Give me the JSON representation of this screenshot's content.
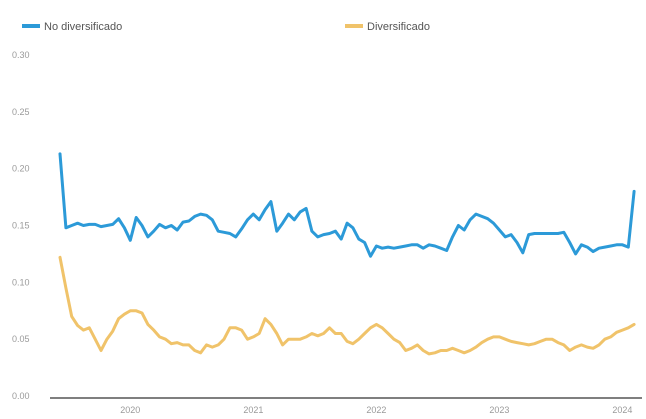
{
  "chart_data": {
    "type": "line",
    "title": "",
    "xlabel": "",
    "ylabel": "",
    "ylim": [
      0.0,
      0.3
    ],
    "yticks": [
      {
        "value": 0.0,
        "label": "0.00"
      },
      {
        "value": 0.05,
        "label": "0.05"
      },
      {
        "value": 0.1,
        "label": "0.10"
      },
      {
        "value": 0.15,
        "label": "0.15"
      },
      {
        "value": 0.2,
        "label": "0.20"
      },
      {
        "value": 0.25,
        "label": "0.25"
      },
      {
        "value": 0.3,
        "label": "0.30"
      }
    ],
    "xlim": [
      0,
      99
    ],
    "xticks": [
      {
        "value": 12,
        "label": "2020"
      },
      {
        "value": 33,
        "label": "2021"
      },
      {
        "value": 54,
        "label": "2022"
      },
      {
        "value": 75,
        "label": "2023"
      },
      {
        "value": 96,
        "label": "2024"
      }
    ],
    "legend_position": "top",
    "grid": false,
    "series": [
      {
        "name": "No diversificado",
        "color": "#2c9ad8",
        "values": [
          0.213,
          0.148,
          0.15,
          0.152,
          0.15,
          0.151,
          0.151,
          0.149,
          0.15,
          0.151,
          0.156,
          0.148,
          0.137,
          0.157,
          0.15,
          0.14,
          0.145,
          0.151,
          0.148,
          0.15,
          0.146,
          0.153,
          0.154,
          0.158,
          0.16,
          0.159,
          0.155,
          0.145,
          0.144,
          0.143,
          0.14,
          0.147,
          0.155,
          0.16,
          0.155,
          0.164,
          0.171,
          0.145,
          0.152,
          0.16,
          0.155,
          0.162,
          0.165,
          0.145,
          0.14,
          0.142,
          0.143,
          0.145,
          0.138,
          0.152,
          0.148,
          0.138,
          0.135,
          0.123,
          0.132,
          0.13,
          0.131,
          0.13,
          0.131,
          0.132,
          0.133,
          0.133,
          0.13,
          0.133,
          0.132,
          0.13,
          0.128,
          0.14,
          0.15,
          0.146,
          0.155,
          0.16,
          0.158,
          0.156,
          0.152,
          0.146,
          0.14,
          0.142,
          0.135,
          0.126,
          0.142,
          0.143,
          0.143,
          0.143,
          0.143,
          0.143,
          0.144,
          0.135,
          0.125,
          0.133,
          0.131,
          0.127,
          0.13,
          0.131,
          0.132,
          0.133,
          0.133,
          0.131,
          0.18
        ]
      },
      {
        "name": "Diversificado",
        "color": "#f0c36a",
        "values": [
          0.122,
          0.095,
          0.07,
          0.062,
          0.058,
          0.06,
          0.05,
          0.04,
          0.05,
          0.057,
          0.068,
          0.072,
          0.075,
          0.075,
          0.073,
          0.063,
          0.058,
          0.052,
          0.05,
          0.046,
          0.047,
          0.045,
          0.045,
          0.04,
          0.038,
          0.045,
          0.043,
          0.045,
          0.05,
          0.06,
          0.06,
          0.058,
          0.05,
          0.052,
          0.055,
          0.068,
          0.063,
          0.055,
          0.045,
          0.05,
          0.05,
          0.05,
          0.052,
          0.055,
          0.053,
          0.055,
          0.06,
          0.055,
          0.055,
          0.048,
          0.046,
          0.05,
          0.055,
          0.06,
          0.063,
          0.06,
          0.055,
          0.05,
          0.047,
          0.04,
          0.042,
          0.045,
          0.04,
          0.037,
          0.038,
          0.04,
          0.04,
          0.042,
          0.04,
          0.038,
          0.04,
          0.043,
          0.047,
          0.05,
          0.052,
          0.052,
          0.05,
          0.048,
          0.047,
          0.046,
          0.045,
          0.046,
          0.048,
          0.05,
          0.05,
          0.047,
          0.045,
          0.04,
          0.043,
          0.045,
          0.043,
          0.042,
          0.045,
          0.05,
          0.052,
          0.056,
          0.058,
          0.06,
          0.063
        ]
      }
    ]
  }
}
